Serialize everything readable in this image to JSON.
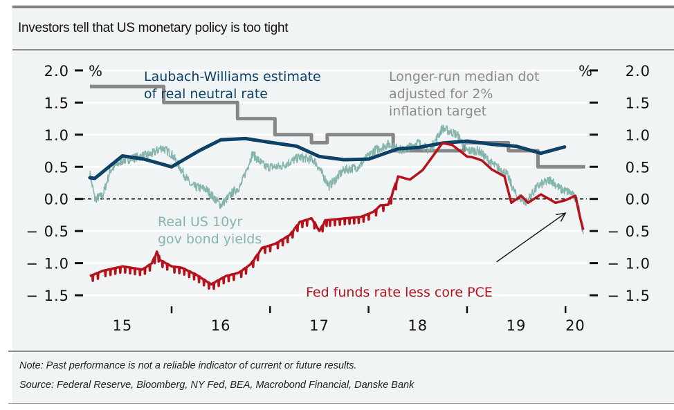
{
  "header": {
    "title": "Investors tell that US monetary policy is too tight"
  },
  "footer": {
    "note": "Note: Past performance is not a reliable indicator of current or future results.",
    "source": "Source: Federal Reserve, Bloomberg, NY Fed, BEA, Macrobond Financial, Danske Bank"
  },
  "colors": {
    "background": "#f1f4f5",
    "laubach_williams": "#0d4266",
    "longer_run_dot": "#878787",
    "real_10yr": "#86b5ae",
    "fed_funds_less_pce": "#b5121b",
    "gridline": "#ffffff"
  },
  "chart_data": {
    "type": "line",
    "title": "Investors tell that US monetary policy is too tight",
    "xlabel": "",
    "ylabel_left": "%",
    "ylabel_right": "%",
    "ylim": [
      -1.5,
      2.0
    ],
    "xlim": [
      2015.0,
      2020.35
    ],
    "y_ticks": [
      2.0,
      1.5,
      1.0,
      0.5,
      0.0,
      -0.5,
      -1.0,
      -1.5
    ],
    "y_tick_labels": [
      "2.0",
      "1.5",
      "1.0",
      "0.5",
      "0.0",
      "-0.5",
      "-1.0",
      "-1.5"
    ],
    "x_tick_positions": [
      2016,
      2017,
      2018,
      2019,
      2020
    ],
    "x_labels": [
      {
        "label": "15",
        "x": 2015.5
      },
      {
        "label": "16",
        "x": 2016.5
      },
      {
        "label": "17",
        "x": 2017.5
      },
      {
        "label": "18",
        "x": 2018.5
      },
      {
        "label": "19",
        "x": 2019.5
      },
      {
        "label": "20",
        "x": 2020.1
      }
    ],
    "grid": true,
    "zero_line": "dashed",
    "series": [
      {
        "name": "Laubach-Williams estimate of real neutral rate",
        "style": "thick-line",
        "x": [
          2015.17,
          2015.22,
          2015.5,
          2015.72,
          2016.0,
          2016.28,
          2016.5,
          2016.75,
          2017.0,
          2017.27,
          2017.5,
          2017.75,
          2018.0,
          2018.3,
          2018.5,
          2018.75,
          2019.0,
          2019.25,
          2019.5,
          2019.75,
          2019.99
        ],
        "values": [
          0.33,
          0.32,
          0.67,
          0.62,
          0.5,
          0.75,
          0.92,
          0.94,
          0.88,
          0.82,
          0.66,
          0.61,
          0.62,
          0.78,
          0.8,
          0.87,
          0.9,
          0.85,
          0.82,
          0.71,
          0.81
        ],
        "note_end": [
          {
            "x": 2019.75,
            "v": 0.71
          },
          {
            "x": 2020.0,
            "v": 0.81
          }
        ]
      },
      {
        "name": "Longer-run median dot adjusted for 2% inflation target",
        "style": "step",
        "steps": [
          {
            "from": 2015.17,
            "to": 2015.92,
            "value": 1.75
          },
          {
            "from": 2015.92,
            "to": 2016.67,
            "value": 1.5
          },
          {
            "from": 2016.67,
            "to": 2017.05,
            "value": 1.25
          },
          {
            "from": 2017.05,
            "to": 2017.42,
            "value": 1.0
          },
          {
            "from": 2017.42,
            "to": 2017.58,
            "value": 0.875
          },
          {
            "from": 2017.58,
            "to": 2018.0,
            "value": 1.0
          },
          {
            "from": 2018.0,
            "to": 2018.25,
            "value": 1.0
          },
          {
            "from": 2018.25,
            "to": 2018.97,
            "value": 0.75
          },
          {
            "from": 2018.97,
            "to": 2019.42,
            "value": 0.875
          },
          {
            "from": 2019.42,
            "to": 2019.72,
            "value": 0.75
          },
          {
            "from": 2019.72,
            "to": 2020.2,
            "value": 0.5
          }
        ]
      },
      {
        "name": "Real US 10yr gov bond yields",
        "style": "noisy-line",
        "x": [
          2015.17,
          2015.22,
          2015.3,
          2015.38,
          2015.5,
          2015.65,
          2015.8,
          2015.9,
          2016.0,
          2016.12,
          2016.2,
          2016.35,
          2016.5,
          2016.62,
          2016.7,
          2016.82,
          2016.95,
          2017.1,
          2017.3,
          2017.45,
          2017.6,
          2017.75,
          2017.9,
          2018.05,
          2018.2,
          2018.35,
          2018.5,
          2018.62,
          2018.75,
          2018.9,
          2019.0,
          2019.12,
          2019.25,
          2019.4,
          2019.5,
          2019.6,
          2019.72,
          2019.85,
          2019.95,
          2020.05,
          2020.13,
          2020.18
        ],
        "values": [
          0.4,
          0.0,
          0.05,
          0.45,
          0.6,
          0.65,
          0.7,
          0.8,
          0.7,
          0.4,
          0.2,
          0.15,
          -0.1,
          0.1,
          0.2,
          0.7,
          0.5,
          0.5,
          0.65,
          0.6,
          0.2,
          0.45,
          0.5,
          0.75,
          0.85,
          0.75,
          0.88,
          0.75,
          1.1,
          1.0,
          0.75,
          0.75,
          0.55,
          0.4,
          0.05,
          -0.05,
          0.2,
          0.3,
          0.15,
          0.1,
          -0.05,
          -0.55
        ]
      },
      {
        "name": "Fed funds rate less core PCE",
        "style": "line",
        "x": [
          2015.17,
          2015.3,
          2015.5,
          2015.7,
          2015.8,
          2015.85,
          2015.88,
          2016.0,
          2016.1,
          2016.25,
          2016.4,
          2016.55,
          2016.68,
          2016.8,
          2016.92,
          2017.05,
          2017.2,
          2017.3,
          2017.42,
          2017.5,
          2017.56,
          2017.58,
          2017.78,
          2017.92,
          2018.05,
          2018.12,
          2018.2,
          2018.3,
          2018.42,
          2018.55,
          2018.75,
          2018.85,
          2019.0,
          2019.05,
          2019.15,
          2019.25,
          2019.38,
          2019.45,
          2019.55,
          2019.62,
          2019.75,
          2019.9,
          2020.0,
          2020.1,
          2020.15,
          2020.18
        ],
        "values": [
          -1.2,
          -1.12,
          -1.05,
          -1.1,
          -1.0,
          -0.82,
          -0.95,
          -1.05,
          -1.07,
          -1.18,
          -1.33,
          -1.2,
          -1.15,
          -1.02,
          -0.76,
          -0.7,
          -0.56,
          -0.36,
          -0.3,
          -0.5,
          -0.33,
          -0.33,
          -0.3,
          -0.28,
          -0.2,
          -0.1,
          -0.09,
          0.35,
          0.3,
          0.45,
          0.87,
          0.84,
          0.66,
          0.65,
          0.6,
          0.46,
          0.35,
          -0.06,
          0.05,
          -0.06,
          0.07,
          -0.06,
          -0.02,
          0.05,
          -0.3,
          -0.48
        ]
      }
    ],
    "annotations": [
      {
        "text_lines": [
          "Laubach-Williams estimate",
          "of real neutral rate"
        ],
        "series": "Laubach-Williams estimate of real neutral rate"
      },
      {
        "text_lines": [
          "Longer-run median dot",
          "adjusted for 2%",
          "inflation target"
        ],
        "series": "Longer-run median dot adjusted for 2% inflation target"
      },
      {
        "text_lines": [
          "Real US 10yr",
          "gov bond yields"
        ],
        "series": "Real US 10yr gov bond yields"
      },
      {
        "text_lines": [
          "Fed funds rate less core PCE"
        ],
        "series": "Fed funds rate less core PCE"
      },
      {
        "type": "arrow",
        "from": {
          "x": 2019.3,
          "v": -0.98
        },
        "to": {
          "x": 2020.0,
          "v": -0.22
        }
      }
    ],
    "legend": "inline-labels"
  }
}
